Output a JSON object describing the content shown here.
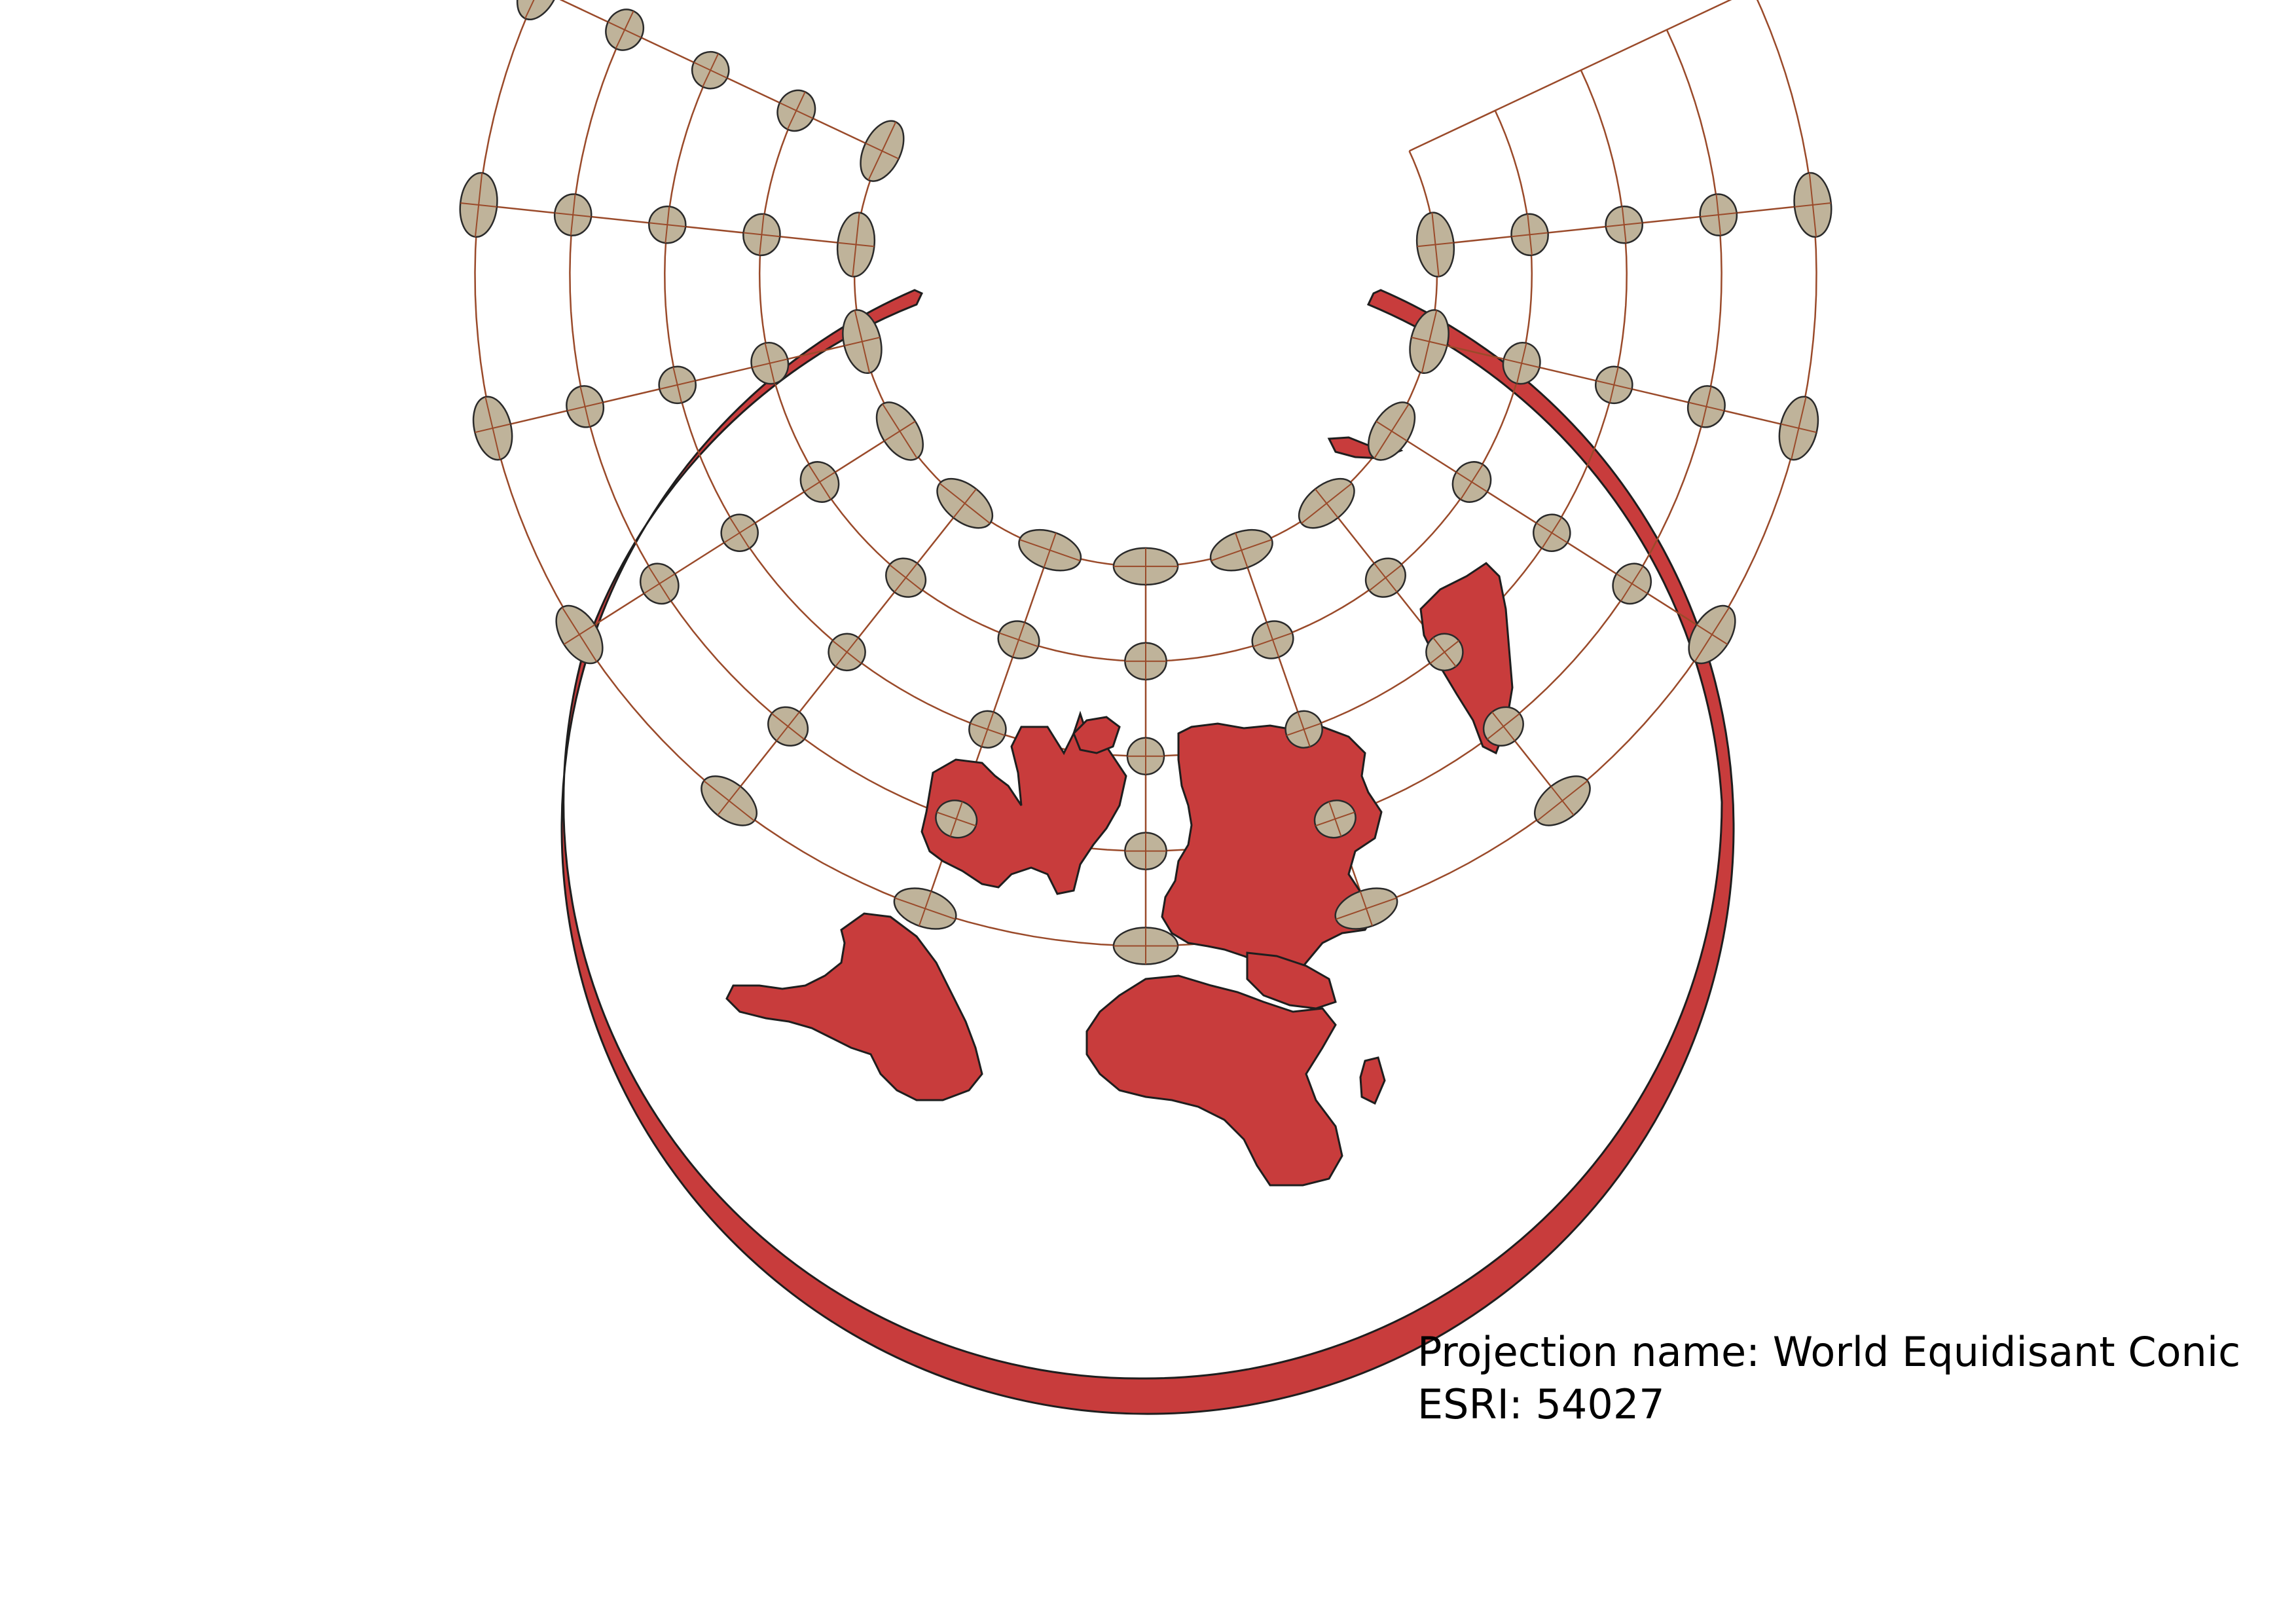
{
  "map": {
    "projection_label": "Projection name: World Equidisant Conic",
    "code_label": "ESRI: 54027",
    "land_color": "#c83c3c",
    "outline_color": "#1e1e1e",
    "indicatrix_color": "#bfb39a",
    "graticule_color": "#9a4a2a",
    "background_color": "#ffffff",
    "graticule": {
      "meridian_spacing_deg": 30,
      "parallels_deg": [
        60,
        30,
        0,
        -30,
        -60
      ],
      "indicatrix_count": 60
    }
  }
}
